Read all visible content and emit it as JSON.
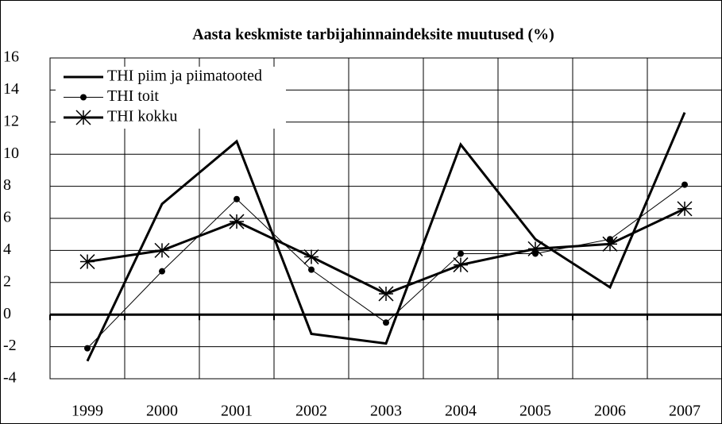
{
  "chart_data": {
    "type": "line",
    "title": "Aasta keskmiste tarbijahinnaindeksite muutused (%)",
    "categories": [
      "1999",
      "2000",
      "2001",
      "2002",
      "2003",
      "2004",
      "2005",
      "2006",
      "2007"
    ],
    "series": [
      {
        "name": "THI piim ja piimatooted",
        "color": "#000000",
        "marker": "none",
        "values": [
          -2.9,
          6.9,
          10.8,
          -1.2,
          -1.8,
          10.6,
          4.7,
          1.7,
          12.6
        ]
      },
      {
        "name": "THI toit",
        "color": "#000000",
        "marker": "circle",
        "values": [
          -2.1,
          2.7,
          7.2,
          2.8,
          -0.5,
          3.8,
          3.8,
          4.7,
          8.1
        ]
      },
      {
        "name": "THI kokku",
        "color": "#000000",
        "marker": "star",
        "values": [
          3.3,
          4.0,
          5.8,
          3.6,
          1.3,
          3.1,
          4.1,
          4.4,
          6.6
        ]
      }
    ],
    "ylim": [
      -4,
      16
    ],
    "yticks": [
      -4,
      -2,
      0,
      2,
      4,
      6,
      8,
      10,
      12,
      14,
      16
    ],
    "grid": true,
    "legend": "top-left"
  }
}
